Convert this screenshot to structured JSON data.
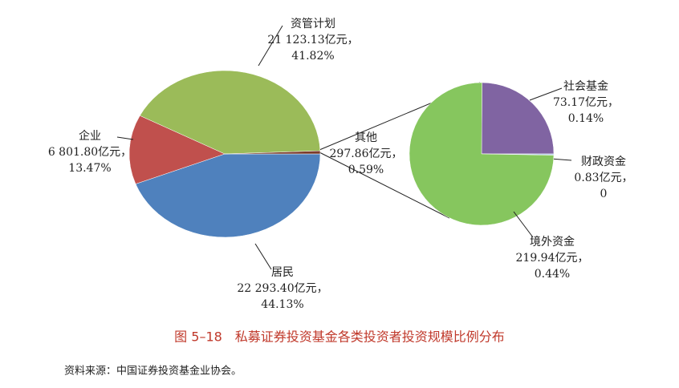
{
  "figure": {
    "title": "图 5–18　私募证券投资基金各类投资者投资规模比例分布",
    "source": "资料来源：中国证券投资基金业协会。"
  },
  "chart_data": [
    {
      "type": "pie",
      "categories": [
        "居民",
        "企业",
        "资管计划",
        "其他"
      ],
      "values": [
        22293.4,
        6801.8,
        21123.13,
        297.86
      ],
      "value_labels": [
        "22 293.40亿元，",
        "6 801.80亿元，",
        "21 123.13亿元，",
        "297.86亿元，"
      ],
      "percents": [
        44.13,
        13.47,
        41.82,
        0.59
      ],
      "percent_labels": [
        "44.13%",
        "13.47%",
        "41.82%",
        "0.59%"
      ],
      "colors": [
        "#4f81bd",
        "#c0504d",
        "#9bbb59",
        "#7b3b2a"
      ]
    },
    {
      "type": "pie",
      "categories": [
        "社会基金",
        "财政资金",
        "境外资金"
      ],
      "values": [
        73.17,
        0.83,
        219.94
      ],
      "value_labels": [
        "73.17亿元，",
        "0.83亿元，",
        "219.94亿元，"
      ],
      "percents": [
        0.14,
        0,
        0.44
      ],
      "percent_labels": [
        "0.14%",
        "0",
        "0.44%"
      ],
      "colors": [
        "#8064a2",
        "#a9c9ea",
        "#86c65e"
      ]
    }
  ]
}
